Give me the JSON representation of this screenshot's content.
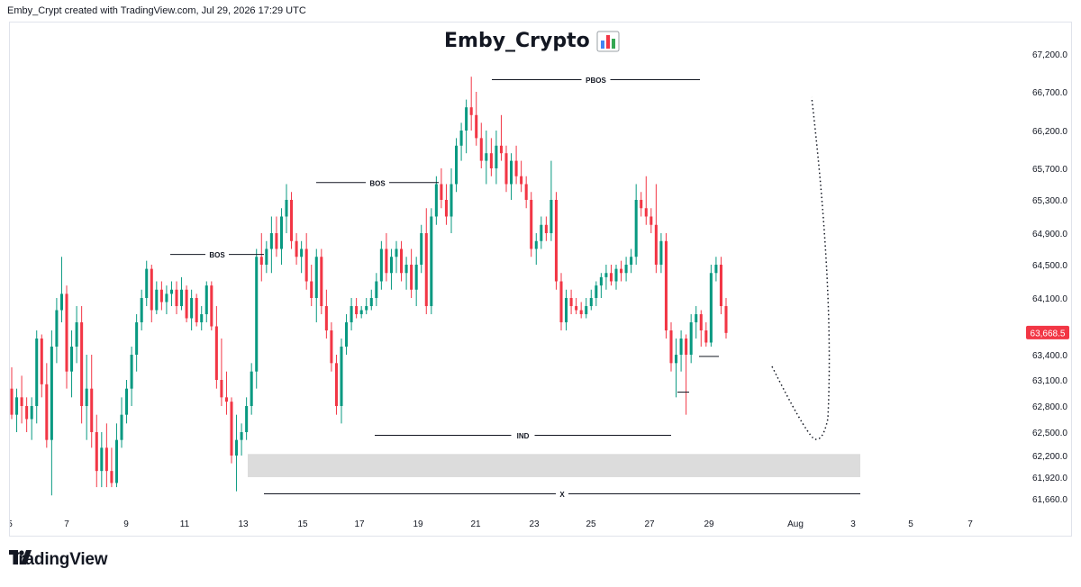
{
  "header": {
    "text": "Emby_Crypt created with TradingView.com, Jul 29, 2026 17:29 UTC"
  },
  "logo": {
    "icon": "tradingview-logo-icon",
    "text": "TradingView"
  },
  "colors": {
    "up": "#089981",
    "down": "#f23645",
    "zone": "#dcdcdc",
    "line": "#131722",
    "price_tag": "#f23645"
  },
  "chart_data": {
    "type": "candlestick",
    "title": "Emby_Crypto",
    "title_emoji": "📊",
    "price_axis_labels": [
      "67,200.0",
      "66,700.0",
      "66,200.0",
      "65,700.0",
      "65,300.0",
      "64,900.0",
      "64,500.0",
      "64,100.0",
      "63,400.0",
      "63,100.0",
      "62,800.0",
      "62,500.0",
      "62,200.0",
      "61,920.0",
      "61,660.0"
    ],
    "time_axis_labels": [
      "5",
      "7",
      "9",
      "11",
      "13",
      "15",
      "17",
      "19",
      "21",
      "23",
      "25",
      "27",
      "29",
      "Aug",
      "3",
      "5",
      "7"
    ],
    "current_price": "63,668.5",
    "annotations": [
      "BOS",
      "BOS",
      "PBOS",
      "IND",
      "X"
    ],
    "demand_zone": [
      61920,
      62220
    ],
    "candles": [
      [
        63000,
        63250,
        62650,
        62700
      ],
      [
        62700,
        63000,
        62500,
        62900
      ],
      [
        62900,
        63150,
        62600,
        62800
      ],
      [
        62800,
        62900,
        62500,
        62650
      ],
      [
        62650,
        62900,
        62400,
        62800
      ],
      [
        62800,
        63700,
        62600,
        63600
      ],
      [
        63600,
        63650,
        62900,
        63050
      ],
      [
        63050,
        63300,
        62300,
        62400
      ],
      [
        62400,
        63700,
        61700,
        63500
      ],
      [
        63500,
        64100,
        63300,
        63950
      ],
      [
        63950,
        64600,
        63800,
        64150
      ],
      [
        64150,
        64250,
        63000,
        63200
      ],
      [
        63200,
        63700,
        62900,
        63500
      ],
      [
        63500,
        64000,
        63300,
        63800
      ],
      [
        63800,
        64000,
        62600,
        62800
      ],
      [
        62800,
        63400,
        62400,
        63000
      ],
      [
        63000,
        63400,
        62300,
        62500
      ],
      [
        62500,
        62700,
        61800,
        62000
      ],
      [
        62000,
        62500,
        61800,
        62300
      ],
      [
        62300,
        62600,
        61800,
        62000
      ],
      [
        62000,
        62300,
        61800,
        61850
      ],
      [
        61850,
        62600,
        61800,
        62400
      ],
      [
        62400,
        62900,
        62300,
        62700
      ],
      [
        62700,
        63100,
        62600,
        63000
      ],
      [
        63000,
        63500,
        62800,
        63400
      ],
      [
        63400,
        63900,
        63200,
        63800
      ],
      [
        63800,
        64200,
        63700,
        64100
      ],
      [
        64100,
        64550,
        64000,
        64450
      ],
      [
        64450,
        64500,
        63800,
        63950
      ],
      [
        63950,
        64300,
        63900,
        64200
      ],
      [
        64200,
        64300,
        63950,
        64050
      ],
      [
        64050,
        64250,
        63900,
        64150
      ],
      [
        64150,
        64300,
        64000,
        64200
      ],
      [
        64200,
        64300,
        63900,
        64000
      ],
      [
        64000,
        64350,
        63950,
        64200
      ],
      [
        64200,
        64250,
        63800,
        63850
      ],
      [
        63850,
        64200,
        63700,
        64100
      ],
      [
        64100,
        64150,
        63750,
        63800
      ],
      [
        63800,
        64000,
        63700,
        63900
      ],
      [
        63900,
        64300,
        63800,
        64250
      ],
      [
        64250,
        64300,
        63700,
        63750
      ],
      [
        63750,
        64000,
        63000,
        63100
      ],
      [
        63100,
        63600,
        62800,
        62900
      ],
      [
        62900,
        63200,
        62700,
        62850
      ],
      [
        62850,
        62900,
        62100,
        62200
      ],
      [
        62200,
        62700,
        61750,
        62400
      ],
      [
        62400,
        62600,
        62200,
        62500
      ],
      [
        62500,
        62900,
        62400,
        62800
      ],
      [
        62800,
        63300,
        62700,
        63200
      ],
      [
        63200,
        64700,
        63000,
        64600
      ],
      [
        64600,
        64900,
        64300,
        64500
      ],
      [
        64500,
        64800,
        64400,
        64700
      ],
      [
        64700,
        65100,
        64400,
        64900
      ],
      [
        64900,
        65100,
        64600,
        64700
      ],
      [
        64700,
        65200,
        64500,
        65100
      ],
      [
        65100,
        65500,
        64900,
        65300
      ],
      [
        65300,
        65400,
        64700,
        64800
      ],
      [
        64800,
        64900,
        64500,
        64600
      ],
      [
        64600,
        64800,
        64400,
        64700
      ],
      [
        64700,
        64900,
        64200,
        64300
      ],
      [
        64300,
        64500,
        64000,
        64100
      ],
      [
        64100,
        64700,
        63800,
        64600
      ],
      [
        64600,
        64700,
        63900,
        64000
      ],
      [
        64000,
        64200,
        63600,
        63700
      ],
      [
        63700,
        63800,
        63200,
        63300
      ],
      [
        63300,
        63400,
        62700,
        62800
      ],
      [
        62800,
        63600,
        62600,
        63500
      ],
      [
        63500,
        63900,
        63400,
        63800
      ],
      [
        63800,
        64100,
        63700,
        64000
      ],
      [
        64000,
        64100,
        63850,
        63900
      ],
      [
        63900,
        64000,
        63850,
        63950
      ],
      [
        63950,
        64100,
        63900,
        64000
      ],
      [
        64000,
        64200,
        63950,
        64100
      ],
      [
        64100,
        64400,
        64000,
        64300
      ],
      [
        64300,
        64800,
        64200,
        64700
      ],
      [
        64700,
        64900,
        64300,
        64400
      ],
      [
        64400,
        64700,
        64200,
        64600
      ],
      [
        64600,
        64800,
        64400,
        64700
      ],
      [
        64700,
        64800,
        64300,
        64400
      ],
      [
        64400,
        64600,
        64200,
        64500
      ],
      [
        64500,
        64700,
        64100,
        64200
      ],
      [
        64200,
        64600,
        64000,
        64500
      ],
      [
        64500,
        65000,
        64400,
        64900
      ],
      [
        64900,
        65200,
        63900,
        64000
      ],
      [
        64000,
        65200,
        63900,
        65100
      ],
      [
        65100,
        65600,
        65000,
        65500
      ],
      [
        65500,
        65700,
        65200,
        65300
      ],
      [
        65300,
        65500,
        65000,
        65100
      ],
      [
        65100,
        65700,
        64900,
        65500
      ],
      [
        65500,
        66100,
        65400,
        66000
      ],
      [
        66000,
        66300,
        65800,
        66200
      ],
      [
        66200,
        66600,
        65900,
        66500
      ],
      [
        66500,
        66900,
        66200,
        66400
      ],
      [
        66400,
        66700,
        66000,
        66100
      ],
      [
        66100,
        66300,
        65700,
        65800
      ],
      [
        65800,
        66200,
        65500,
        65900
      ],
      [
        65900,
        66100,
        65600,
        65700
      ],
      [
        65700,
        66200,
        65500,
        66000
      ],
      [
        66000,
        66400,
        65800,
        65900
      ],
      [
        65900,
        66000,
        65400,
        65500
      ],
      [
        65500,
        65900,
        65300,
        65800
      ],
      [
        65800,
        66000,
        65500,
        65600
      ],
      [
        65600,
        65800,
        65400,
        65500
      ],
      [
        65500,
        65600,
        65200,
        65300
      ],
      [
        65300,
        65400,
        64600,
        64700
      ],
      [
        64700,
        64900,
        64500,
        64800
      ],
      [
        64800,
        65100,
        64700,
        65000
      ],
      [
        65000,
        65100,
        64800,
        64900
      ],
      [
        64900,
        65800,
        64800,
        65300
      ],
      [
        65300,
        65400,
        64200,
        64300
      ],
      [
        64300,
        64400,
        63700,
        63800
      ],
      [
        63800,
        64200,
        63700,
        64100
      ],
      [
        64100,
        64200,
        63900,
        64000
      ],
      [
        64000,
        64100,
        63900,
        63950
      ],
      [
        63950,
        64050,
        63850,
        63900
      ],
      [
        63900,
        64100,
        63850,
        64000
      ],
      [
        64000,
        64200,
        63950,
        64100
      ],
      [
        64100,
        64300,
        64000,
        64250
      ],
      [
        64250,
        64400,
        64100,
        64350
      ],
      [
        64350,
        64500,
        64200,
        64400
      ],
      [
        64400,
        64500,
        64250,
        64300
      ],
      [
        64300,
        64500,
        64200,
        64450
      ],
      [
        64450,
        64550,
        64300,
        64400
      ],
      [
        64400,
        64600,
        64300,
        64500
      ],
      [
        64500,
        64700,
        64400,
        64600
      ],
      [
        64600,
        65500,
        64500,
        65300
      ],
      [
        65300,
        65400,
        65100,
        65200
      ],
      [
        65200,
        65600,
        65000,
        65100
      ],
      [
        65100,
        65200,
        64900,
        65000
      ],
      [
        65000,
        65500,
        64400,
        64500
      ],
      [
        64500,
        64900,
        64400,
        64800
      ],
      [
        64800,
        64900,
        63600,
        63700
      ],
      [
        63700,
        63800,
        63200,
        63300
      ],
      [
        63300,
        63600,
        62900,
        63400
      ],
      [
        63400,
        63700,
        63200,
        63600
      ],
      [
        63600,
        63650,
        62700,
        63400
      ],
      [
        63400,
        63900,
        63300,
        63800
      ],
      [
        63800,
        64000,
        63600,
        63900
      ],
      [
        63900,
        63950,
        63500,
        63700
      ],
      [
        63700,
        63800,
        63500,
        63550
      ],
      [
        63550,
        64500,
        63500,
        64400
      ],
      [
        64400,
        64600,
        64300,
        64500
      ],
      [
        64500,
        64600,
        63900,
        64000
      ],
      [
        64000,
        64100,
        63600,
        63668.5
      ]
    ]
  }
}
